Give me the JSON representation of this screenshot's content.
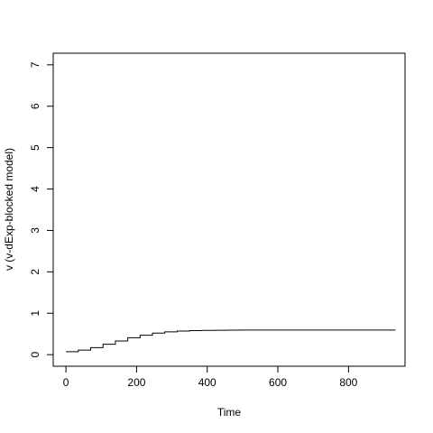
{
  "chart_data": {
    "type": "line",
    "title": "",
    "xlabel": "Time",
    "ylabel": "v (v-dExp-blocked model)",
    "xlim": [
      -36,
      960
    ],
    "ylim": [
      -0.28,
      7.28
    ],
    "x_ticks": [
      0,
      200,
      400,
      600,
      800
    ],
    "y_ticks": [
      0,
      1,
      2,
      3,
      4,
      5,
      6,
      7
    ],
    "grid": false,
    "legend": "none",
    "line_color": "#000000",
    "series": [
      {
        "step": true,
        "x": [
          0,
          35,
          70,
          105,
          140,
          175,
          210,
          245,
          280,
          315,
          350,
          385,
          420,
          455,
          490,
          525,
          560,
          600,
          700,
          800,
          933
        ],
        "values": [
          0.07,
          0.11,
          0.17,
          0.25,
          0.33,
          0.41,
          0.47,
          0.52,
          0.55,
          0.57,
          0.58,
          0.585,
          0.59,
          0.592,
          0.593,
          0.594,
          0.595,
          0.595,
          0.595,
          0.595,
          0.595
        ]
      }
    ]
  }
}
